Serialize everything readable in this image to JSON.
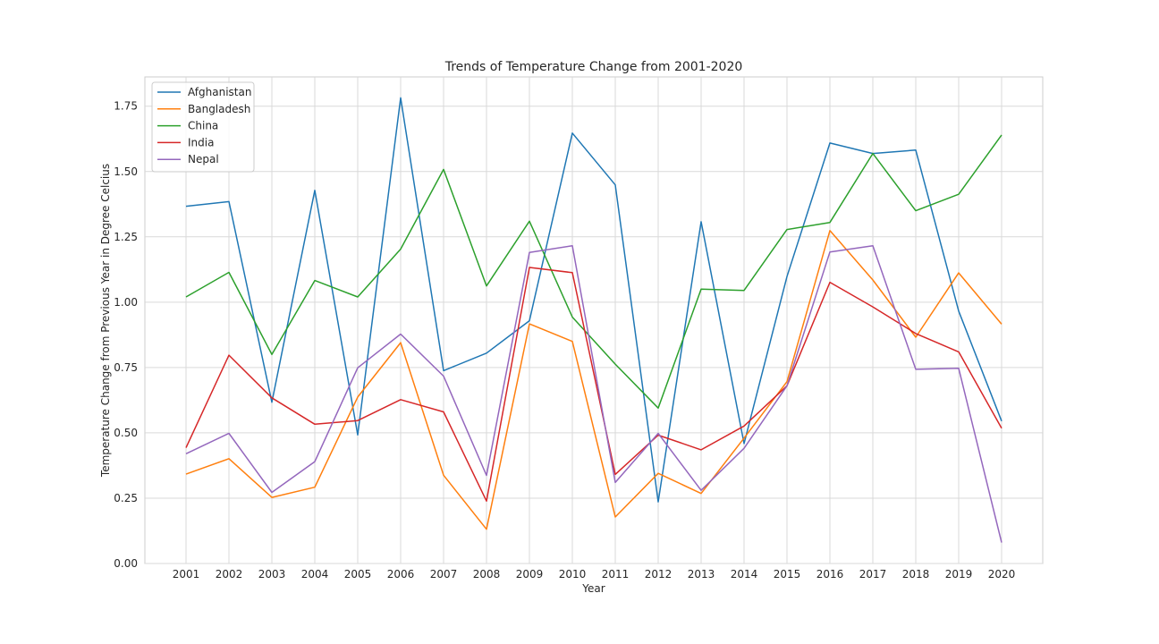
{
  "chart_data": {
    "type": "line",
    "title": "Trends of Temperature Change from 2001-2020",
    "xlabel": "Year",
    "ylabel": "Temperature Change from Previous Year in Degree Celcius",
    "categories": [
      "2001",
      "2002",
      "2003",
      "2004",
      "2005",
      "2006",
      "2007",
      "2008",
      "2009",
      "2010",
      "2011",
      "2012",
      "2013",
      "2014",
      "2015",
      "2016",
      "2017",
      "2018",
      "2019",
      "2020"
    ],
    "ylim": [
      0,
      1.862
    ],
    "yticks": [
      0.0,
      0.25,
      0.5,
      0.75,
      1.0,
      1.25,
      1.5,
      1.75
    ],
    "ytick_labels": [
      "0.00",
      "0.25",
      "0.50",
      "0.75",
      "1.00",
      "1.25",
      "1.50",
      "1.75"
    ],
    "grid": true,
    "legend_position": "top-left",
    "series": [
      {
        "name": "Afghanistan",
        "color": "#1f77b4",
        "values": [
          1.367,
          1.385,
          0.617,
          1.428,
          0.492,
          1.782,
          0.738,
          0.805,
          0.929,
          1.647,
          1.449,
          0.236,
          1.308,
          0.459,
          1.098,
          1.609,
          1.569,
          1.582,
          0.966,
          0.545
        ]
      },
      {
        "name": "Bangladesh",
        "color": "#ff7f0e",
        "values": [
          0.342,
          0.401,
          0.253,
          0.292,
          0.637,
          0.845,
          0.338,
          0.131,
          0.917,
          0.85,
          0.178,
          0.345,
          0.268,
          0.48,
          0.696,
          1.274,
          1.085,
          0.866,
          1.112,
          0.916
        ]
      },
      {
        "name": "China",
        "color": "#2ca02c",
        "values": [
          1.02,
          1.114,
          0.8,
          1.083,
          1.02,
          1.203,
          1.508,
          1.062,
          1.31,
          0.943,
          0.763,
          0.595,
          1.05,
          1.045,
          1.278,
          1.305,
          1.569,
          1.35,
          1.413,
          1.64
        ]
      },
      {
        "name": "India",
        "color": "#d62728",
        "values": [
          0.443,
          0.797,
          0.634,
          0.533,
          0.547,
          0.627,
          0.58,
          0.239,
          1.133,
          1.113,
          0.341,
          0.491,
          0.435,
          0.526,
          0.68,
          1.076,
          0.982,
          0.88,
          0.81,
          0.518
        ]
      },
      {
        "name": "Nepal",
        "color": "#9467bd",
        "values": [
          0.42,
          0.498,
          0.272,
          0.39,
          0.749,
          0.878,
          0.717,
          0.337,
          1.19,
          1.216,
          0.31,
          0.498,
          0.28,
          0.441,
          0.68,
          1.192,
          1.216,
          0.743,
          0.747,
          0.08
        ]
      }
    ]
  }
}
